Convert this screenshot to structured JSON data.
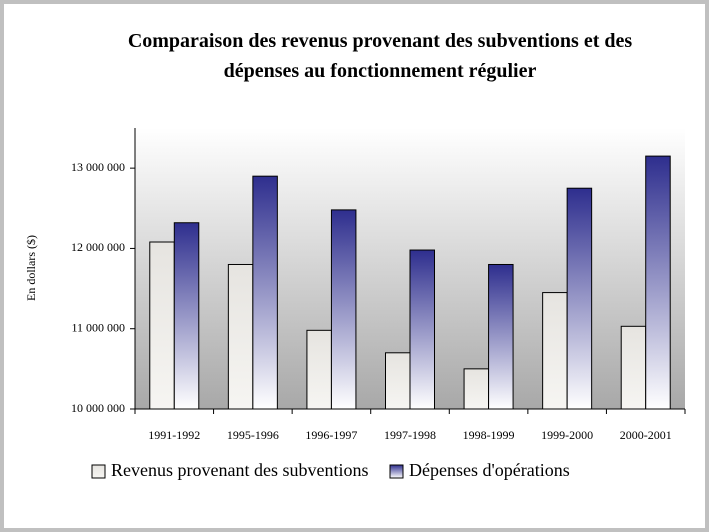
{
  "chart_data": {
    "type": "bar",
    "title": "Comparaison des revenus provenant des subventions et des dépenses au fonctionnement régulier",
    "y_label": "En dollars ($)",
    "categories": [
      "1991-1992",
      "1995-1996",
      "1996-1997",
      "1997-1998",
      "1998-1999",
      "1999-2000",
      "2000-2001"
    ],
    "series": [
      {
        "name": "Revenus provenant des subventions",
        "color": "#e6e4e0",
        "values": [
          12080000,
          11800000,
          10980000,
          10700000,
          10500000,
          11450000,
          11030000
        ]
      },
      {
        "name": "Dépenses d'opérations",
        "color": "#2e2e8e",
        "values": [
          12320000,
          12900000,
          12480000,
          11980000,
          11800000,
          12750000,
          13150000
        ]
      }
    ],
    "ylim": [
      10000000,
      13500000
    ],
    "yticks": [
      {
        "value": 10000000,
        "label": "10 000 000"
      },
      {
        "value": 11000000,
        "label": "11 000 000"
      },
      {
        "value": 12000000,
        "label": "12 000 000"
      },
      {
        "value": 13000000,
        "label": "13 000 000"
      }
    ],
    "grid": false
  }
}
